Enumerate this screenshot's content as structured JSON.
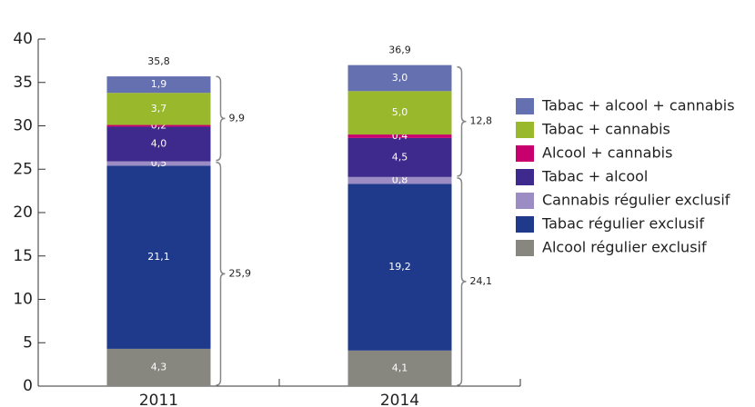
{
  "chart_data": {
    "type": "stacked-bar",
    "categories": [
      "2011",
      "2014"
    ],
    "series": [
      {
        "name": "Alcool régulier exclusif",
        "color": "#878780",
        "values": [
          4.3,
          4.1
        ],
        "value_labels": [
          "4,3",
          "4,1"
        ]
      },
      {
        "name": "Tabac régulier exclusif",
        "color": "#1f3a8a",
        "values": [
          21.1,
          19.2
        ],
        "value_labels": [
          "21,1",
          "19,2"
        ]
      },
      {
        "name": "Cannabis régulier exclusif",
        "color": "#9b8dc4",
        "values": [
          0.5,
          0.8
        ],
        "value_labels": [
          "0,5",
          "0,8"
        ]
      },
      {
        "name": "Tabac + alcool",
        "color": "#3d2a8c",
        "values": [
          4.0,
          4.5
        ],
        "value_labels": [
          "4,0",
          "4,5"
        ]
      },
      {
        "name": "Alcool + cannabis",
        "color": "#c8006e",
        "values": [
          0.2,
          0.4
        ],
        "value_labels": [
          "0,2",
          "0,4"
        ]
      },
      {
        "name": "Tabac + cannabis",
        "color": "#9ab82c",
        "values": [
          3.7,
          5.0
        ],
        "value_labels": [
          "3,7",
          "5,0"
        ]
      },
      {
        "name": "Tabac + alcool + cannabis",
        "color": "#6470b0",
        "values": [
          1.9,
          3.0
        ],
        "value_labels": [
          "1,9",
          "3,0"
        ]
      }
    ],
    "totals": {
      "values": [
        35.8,
        36.9
      ],
      "value_labels": [
        "35,8",
        "36,9"
      ]
    },
    "groups": [
      {
        "values": [
          25.9,
          24.1
        ],
        "value_labels": [
          "25,9",
          "24,1"
        ]
      },
      {
        "values": [
          9.9,
          12.8
        ],
        "value_labels": [
          "9,9",
          "12,8"
        ]
      }
    ],
    "ylim": [
      0,
      40
    ],
    "yticks": [
      0,
      5,
      10,
      15,
      20,
      25,
      30,
      35,
      40
    ],
    "grid": false
  }
}
